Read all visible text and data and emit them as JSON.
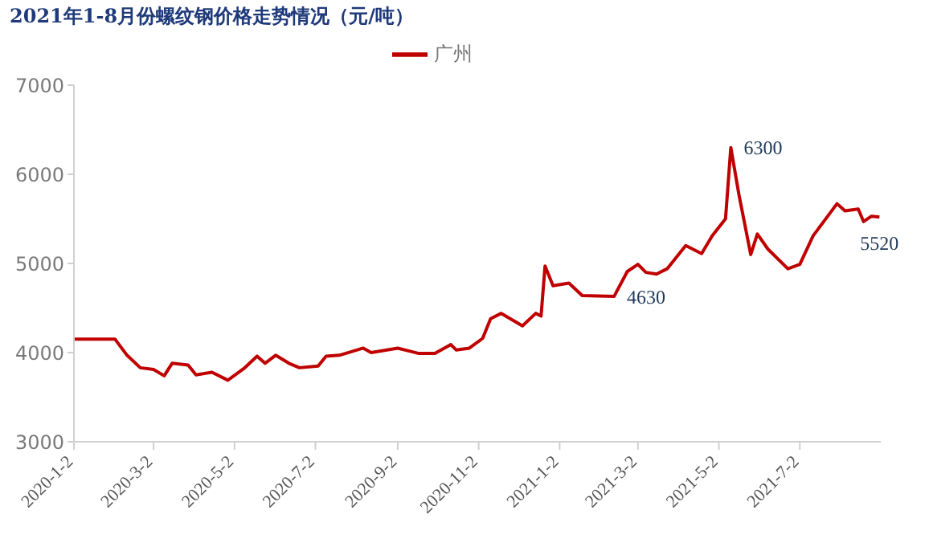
{
  "chart_data": {
    "type": "line",
    "title": "2021年1-8月份螺纹钢价格走势情况（元/吨）",
    "x": [
      "2020-01-02",
      "2020-02-02",
      "2020-02-11",
      "2020-02-21",
      "2020-03-02",
      "2020-03-10",
      "2020-03-16",
      "2020-03-28",
      "2020-04-03",
      "2020-04-15",
      "2020-04-27",
      "2020-05-09",
      "2020-05-19",
      "2020-05-25",
      "2020-06-02",
      "2020-06-12",
      "2020-06-20",
      "2020-07-04",
      "2020-07-10",
      "2020-07-20",
      "2020-08-07",
      "2020-08-13",
      "2020-09-02",
      "2020-09-18",
      "2020-09-30",
      "2020-10-12",
      "2020-10-16",
      "2020-10-26",
      "2020-11-05",
      "2020-11-11",
      "2020-11-19",
      "2020-12-05",
      "2020-12-15",
      "2020-12-19",
      "2020-12-22",
      "2020-12-28",
      "2021-01-09",
      "2021-01-19",
      "2021-02-12",
      "2021-02-22",
      "2021-03-02",
      "2021-03-08",
      "2021-03-16",
      "2021-03-24",
      "2021-04-07",
      "2021-04-19",
      "2021-04-27",
      "2021-05-07",
      "2021-05-11",
      "2021-05-17",
      "2021-05-26",
      "2021-05-31",
      "2021-06-08",
      "2021-06-23",
      "2021-07-02",
      "2021-07-12",
      "2021-07-20",
      "2021-07-30",
      "2021-08-05",
      "2021-08-15",
      "2021-08-19",
      "2021-08-25",
      "2021-08-31"
    ],
    "series": [
      {
        "name": "广州",
        "color": "#c00000",
        "values": [
          4150,
          4150,
          3970,
          3830,
          3810,
          3740,
          3880,
          3860,
          3750,
          3780,
          3690,
          3820,
          3960,
          3880,
          3970,
          3880,
          3830,
          3850,
          3960,
          3970,
          4050,
          4000,
          4050,
          3990,
          3990,
          4090,
          4030,
          4050,
          4160,
          4380,
          4440,
          4300,
          4440,
          4410,
          4970,
          4750,
          4780,
          4640,
          4630,
          4910,
          4990,
          4900,
          4880,
          4940,
          5200,
          5110,
          5310,
          5500,
          6300,
          5780,
          5100,
          5330,
          5160,
          4940,
          4990,
          5310,
          5470,
          5670,
          5590,
          5610,
          5470,
          5530,
          5520
        ]
      }
    ],
    "xlim": [
      "2020-01-02",
      "2021-09-01"
    ],
    "xticks": [
      {
        "value": "2020-01-02",
        "label": "2020-1-2"
      },
      {
        "value": "2020-03-02",
        "label": "2020-3-2"
      },
      {
        "value": "2020-05-02",
        "label": "2020-5-2"
      },
      {
        "value": "2020-07-02",
        "label": "2020-7-2"
      },
      {
        "value": "2020-09-02",
        "label": "2020-9-2"
      },
      {
        "value": "2020-11-02",
        "label": "2020-11-2"
      },
      {
        "value": "2021-01-02",
        "label": "2021-1-2"
      },
      {
        "value": "2021-03-02",
        "label": "2021-3-2"
      },
      {
        "value": "2021-05-02",
        "label": "2021-5-2"
      },
      {
        "value": "2021-07-02",
        "label": "2021-7-2"
      }
    ],
    "ylim": [
      3000,
      7000
    ],
    "yticks": [
      3000,
      4000,
      5000,
      6000,
      7000
    ],
    "annotations": [
      {
        "text": "4630",
        "x": "2021-02-12",
        "y": 4630
      },
      {
        "text": "6300",
        "x": "2021-05-11",
        "y": 6300
      },
      {
        "text": "5520",
        "x": "2021-08-31",
        "y": 5520
      }
    ],
    "legend": "top",
    "grid": false,
    "marker": "none",
    "line_style": "solid"
  }
}
